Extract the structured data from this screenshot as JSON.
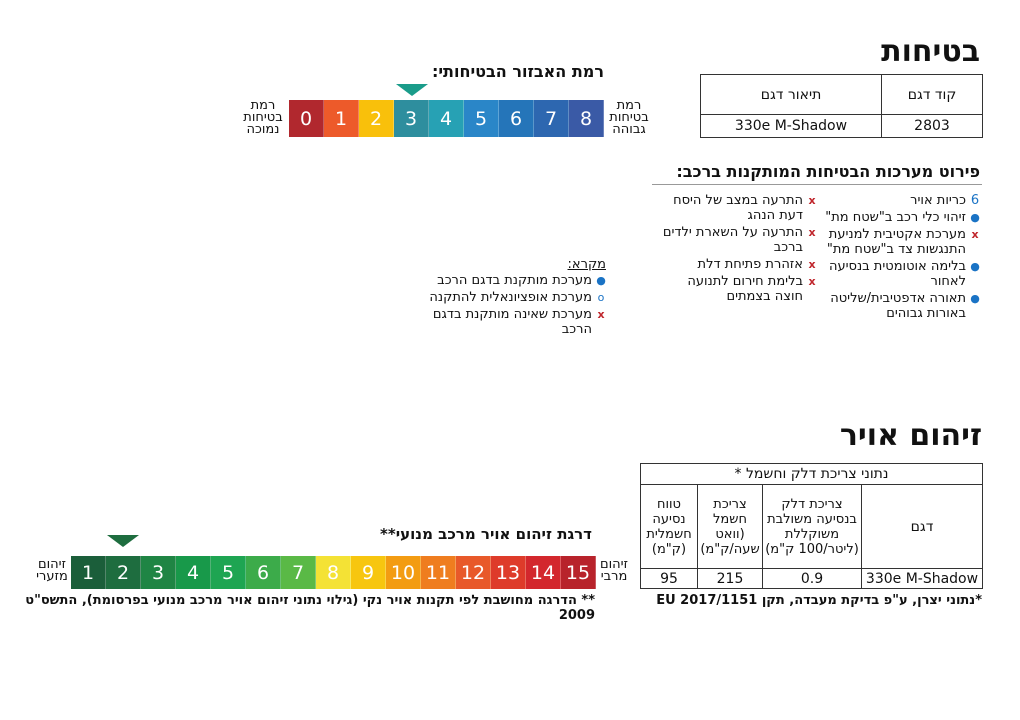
{
  "safety": {
    "title": "בטיחות",
    "model_table": {
      "col_code": "קוד דגם",
      "col_desc": "תיאור דגם",
      "code": "2803",
      "desc": "330e M-Shadow"
    },
    "level_title": "רמת האבזור הבטיחותי:",
    "level_low_label": "רמת בטיחות נמוכה",
    "level_high_label": "רמת בטיחות גבוהה",
    "levels": [
      "0",
      "1",
      "2",
      "3",
      "4",
      "5",
      "6",
      "7",
      "8"
    ],
    "level_colors": [
      "#b1282e",
      "#ed5a2a",
      "#f9c00b",
      "#2e8e9e",
      "#27a1b4",
      "#2a86c8",
      "#2575b9",
      "#2d67b0",
      "#3a5aa6"
    ],
    "selected_level": 3,
    "systems_title": "פירוט מערכות הבטיחות המותקנות ברכב:",
    "systems_right": [
      {
        "mark": "6",
        "text": "כריות אויר"
      },
      {
        "mark": "dot",
        "text": "זיהוי כלי רכב ב\"שטח מת\""
      },
      {
        "mark": "x",
        "text": "מערכת אקטיבית למניעת התנגשות צד ב\"שטח מת\""
      },
      {
        "mark": "dot",
        "text": "בלימה אוטומטית בנסיעה לאחור"
      },
      {
        "mark": "dot",
        "text": "תאורה אדפטיבית/שליטה באורות גבוהים"
      }
    ],
    "systems_left": [
      {
        "mark": "x",
        "text": "התרעה במצב של היסח דעת הנהג"
      },
      {
        "mark": "x",
        "text": "התרעה על השארת ילדים ברכב"
      },
      {
        "mark": "x",
        "text": "אזהרת פתיחת דלת"
      },
      {
        "mark": "x",
        "text": "בלימת חירום לתנועה חוצה בצמתים"
      }
    ],
    "legend": {
      "title": "מקרא:",
      "items": [
        {
          "mark": "dot",
          "text": "מערכת מותקנת בדגם הרכב"
        },
        {
          "mark": "circ",
          "text": "מערכת אופציונאלית להתקנה"
        },
        {
          "mark": "x",
          "text": "מערכת שאינה מותקנת בדגם הרכב"
        }
      ]
    }
  },
  "pollution": {
    "title": "זיהום אויר",
    "table": {
      "header": "נתוני צריכת דלק וחשמל *",
      "col_model": "דגם",
      "col_fuel": "צריכת דלק בנסיעה משולבת משוקללת (ליטר/100 ק\"מ)",
      "col_elec": "צריכת חשמל (וואט שעה/ק\"מ)",
      "col_range": "טווח נסיעה חשמלית (ק\"מ)",
      "model": "330e M-Shadow",
      "fuel": "0.9",
      "elec": "215",
      "range": "95",
      "footnote": "*נתוני יצרן, ע\"פ בדיקת מעבדה, תקן EU 2017/1151"
    },
    "scale_title": "דרגת זיהום אויר מרכב מנועי**",
    "min_label": "זיהום מזערי",
    "max_label": "זיהום מרבי",
    "levels": [
      "1",
      "2",
      "3",
      "4",
      "5",
      "6",
      "7",
      "8",
      "9",
      "10",
      "11",
      "12",
      "13",
      "14",
      "15"
    ],
    "level_colors": [
      "#1b5e3a",
      "#1e6d3f",
      "#1f8544",
      "#18994a",
      "#1ea552",
      "#3cab4a",
      "#5ab946",
      "#f4e235",
      "#f7c60f",
      "#f39c12",
      "#ef7d1f",
      "#e8592a",
      "#de3b2a",
      "#d3272d",
      "#b8232b"
    ],
    "selected_level": 2,
    "footnote": "** הדרגה מחושבת לפי תקנות אויר נקי (גילוי נתוני זיהום אויר מרכב מנועי בפרסומת), התשס\"ט 2009"
  }
}
